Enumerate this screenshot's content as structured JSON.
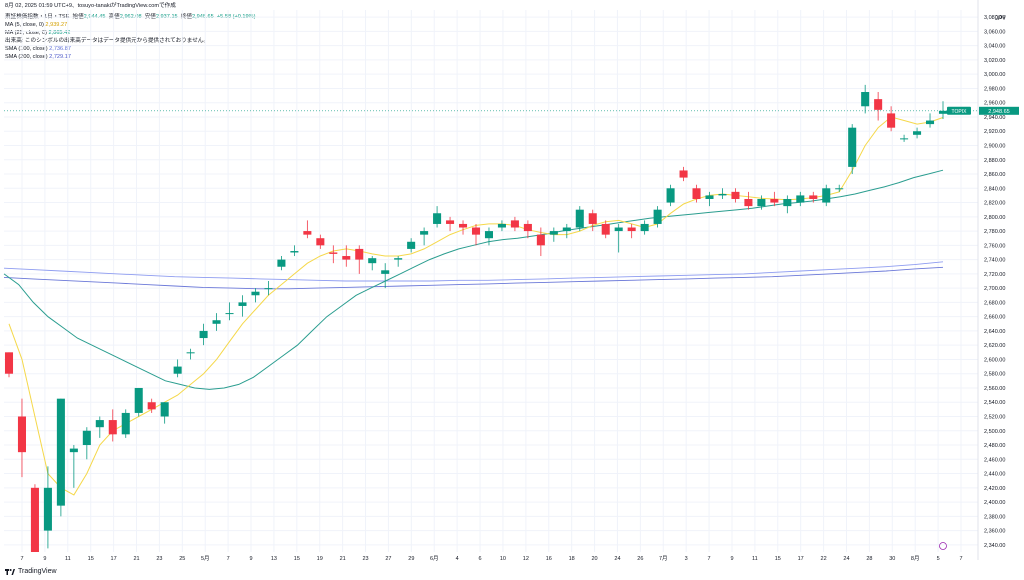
{
  "header": {
    "top_line": "8月 02, 2025 01:59 UTC+9、tosuyo-tanakiがTradingView.comで作成",
    "ohlc": {
      "prefix": "東証株価指数・1日・TSE",
      "open_label": "始値",
      "open": "2,944.45",
      "high_label": "高値",
      "high": "2,962.08",
      "low_label": "安値",
      "low": "2,937.15",
      "close_label": "終値",
      "close": "2,948.65",
      "change": "+5.58 (+0.19%)"
    },
    "indicators": [
      {
        "label": "MA (5, close, 0)",
        "value": "2,939.27",
        "color": "#d4a000"
      },
      {
        "label": "MA (25, close, 0)",
        "value": "2,865.42",
        "color": "#089981"
      },
      {
        "label": "出来高: このシンボルの出来高データはデータ提供元から提供されておりません。",
        "value": "",
        "color": "#131722"
      },
      {
        "label": "SMA (100, close)",
        "value": "2,736.87",
        "color": "#5b6bd6"
      },
      {
        "label": "SMA (200, close)",
        "value": "2,729.17",
        "color": "#4a57c8"
      }
    ]
  },
  "axis": {
    "currency": "JPY",
    "price_ticks": [
      "3,080.00",
      "3,060.00",
      "3,040.00",
      "3,020.00",
      "3,000.00",
      "2,980.00",
      "2,960.00",
      "2,940.00",
      "2,920.00",
      "2,900.00",
      "2,880.00",
      "2,860.00",
      "2,840.00",
      "2,820.00",
      "2,800.00",
      "2,780.00",
      "2,760.00",
      "2,740.00",
      "2,720.00",
      "2,700.00",
      "2,680.00",
      "2,660.00",
      "2,640.00",
      "2,620.00",
      "2,600.00",
      "2,580.00",
      "2,560.00",
      "2,540.00",
      "2,520.00",
      "2,500.00",
      "2,480.00",
      "2,460.00",
      "2,440.00",
      "2,420.00",
      "2,400.00",
      "2,380.00",
      "2,360.00",
      "2,340.00"
    ],
    "date_ticks": [
      "7",
      "9",
      "11",
      "15",
      "17",
      "21",
      "23",
      "25",
      "5月",
      "7",
      "9",
      "13",
      "15",
      "19",
      "21",
      "23",
      "27",
      "29",
      "6月",
      "4",
      "6",
      "10",
      "12",
      "16",
      "18",
      "20",
      "24",
      "26",
      "7月",
      "3",
      "7",
      "9",
      "11",
      "15",
      "17",
      "22",
      "24",
      "28",
      "30",
      "8月",
      "5",
      "7"
    ],
    "current_symbol": "TOPIX",
    "current_price": "2,948.65"
  },
  "footer": {
    "brand": "TradingView"
  },
  "colors": {
    "up": "#089981",
    "down": "#f23645",
    "ma5": "#f5d84a",
    "ma25": "#2a9d8f",
    "sma100": "#8e9cf0",
    "sma200": "#6b78d8"
  },
  "chart_data": {
    "type": "candlestick",
    "title": "東証株価指数・1日・TSE",
    "x_labels": [
      "7",
      "9",
      "11",
      "15",
      "17",
      "21",
      "23",
      "25",
      "5月",
      "7",
      "9",
      "13",
      "15",
      "19",
      "21",
      "23",
      "27",
      "29",
      "6月",
      "4",
      "6",
      "10",
      "12",
      "16",
      "18",
      "20",
      "24",
      "26",
      "7月",
      "3",
      "7",
      "9",
      "11",
      "15",
      "17",
      "22",
      "24",
      "28",
      "30",
      "8月",
      "5",
      "7"
    ],
    "ylim": [
      2330,
      3090
    ],
    "candles": [
      [
        2610,
        2610,
        2575,
        2580
      ],
      [
        2520,
        2545,
        2435,
        2470
      ],
      [
        2420,
        2425,
        2330,
        2330
      ],
      [
        2360,
        2450,
        2335,
        2420
      ],
      [
        2395,
        2545,
        2380,
        2545
      ],
      [
        2470,
        2480,
        2420,
        2475
      ],
      [
        2480,
        2505,
        2460,
        2500
      ],
      [
        2505,
        2520,
        2490,
        2515
      ],
      [
        2515,
        2530,
        2485,
        2495
      ],
      [
        2495,
        2530,
        2490,
        2525
      ],
      [
        2525,
        2560,
        2520,
        2560
      ],
      [
        2540,
        2545,
        2525,
        2530
      ],
      [
        2520,
        2540,
        2510,
        2540
      ],
      [
        2580,
        2600,
        2575,
        2590
      ],
      [
        2610,
        2615,
        2600,
        2610
      ],
      [
        2630,
        2650,
        2620,
        2640
      ],
      [
        2650,
        2665,
        2640,
        2655
      ],
      [
        2665,
        2680,
        2655,
        2665
      ],
      [
        2675,
        2690,
        2660,
        2680
      ],
      [
        2690,
        2700,
        2680,
        2695
      ],
      [
        2700,
        2710,
        2690,
        2700
      ],
      [
        2730,
        2745,
        2725,
        2740
      ],
      [
        2750,
        2760,
        2745,
        2752
      ],
      [
        2780,
        2795,
        2770,
        2775
      ],
      [
        2770,
        2775,
        2755,
        2760
      ],
      [
        2750,
        2760,
        2735,
        2748
      ],
      [
        2745,
        2760,
        2730,
        2740
      ],
      [
        2755,
        2760,
        2720,
        2740
      ],
      [
        2735,
        2745,
        2725,
        2742
      ],
      [
        2720,
        2735,
        2700,
        2725
      ],
      [
        2740,
        2745,
        2730,
        2742
      ],
      [
        2755,
        2770,
        2750,
        2765
      ],
      [
        2775,
        2785,
        2760,
        2780
      ],
      [
        2790,
        2815,
        2785,
        2805
      ],
      [
        2795,
        2800,
        2780,
        2790
      ],
      [
        2790,
        2795,
        2775,
        2785
      ],
      [
        2785,
        2790,
        2760,
        2775
      ],
      [
        2770,
        2785,
        2760,
        2780
      ],
      [
        2785,
        2795,
        2780,
        2790
      ],
      [
        2795,
        2800,
        2780,
        2785
      ],
      [
        2790,
        2795,
        2770,
        2780
      ],
      [
        2775,
        2785,
        2745,
        2760
      ],
      [
        2775,
        2785,
        2765,
        2780
      ],
      [
        2780,
        2790,
        2770,
        2785
      ],
      [
        2785,
        2815,
        2780,
        2810
      ],
      [
        2805,
        2810,
        2780,
        2790
      ],
      [
        2790,
        2795,
        2770,
        2775
      ],
      [
        2780,
        2790,
        2750,
        2785
      ],
      [
        2785,
        2790,
        2770,
        2780
      ],
      [
        2780,
        2795,
        2775,
        2790
      ],
      [
        2790,
        2815,
        2785,
        2810
      ],
      [
        2820,
        2845,
        2815,
        2840
      ],
      [
        2865,
        2870,
        2850,
        2855
      ],
      [
        2840,
        2845,
        2820,
        2825
      ],
      [
        2825,
        2835,
        2815,
        2830
      ],
      [
        2830,
        2840,
        2825,
        2832
      ],
      [
        2835,
        2840,
        2820,
        2825
      ],
      [
        2825,
        2835,
        2810,
        2815
      ],
      [
        2815,
        2830,
        2810,
        2825
      ],
      [
        2825,
        2835,
        2815,
        2820
      ],
      [
        2815,
        2830,
        2805,
        2825
      ],
      [
        2820,
        2835,
        2815,
        2830
      ],
      [
        2830,
        2835,
        2820,
        2825
      ],
      [
        2820,
        2845,
        2815,
        2840
      ],
      [
        2840,
        2845,
        2835,
        2840
      ],
      [
        2870,
        2930,
        2860,
        2925
      ],
      [
        2955,
        2985,
        2945,
        2975
      ],
      [
        2965,
        2975,
        2935,
        2950
      ],
      [
        2945,
        2955,
        2920,
        2925
      ],
      [
        2910,
        2915,
        2905,
        2910
      ],
      [
        2915,
        2925,
        2910,
        2920
      ],
      [
        2930,
        2945,
        2925,
        2935
      ],
      [
        2944.45,
        2962.08,
        2937.15,
        2948.65
      ]
    ],
    "ma5": [
      2650,
      2600,
      2520,
      2440,
      2420,
      2410,
      2440,
      2480,
      2500,
      2510,
      2520,
      2530,
      2540,
      2550,
      2565,
      2580,
      2600,
      2625,
      2650,
      2670,
      2690,
      2705,
      2720,
      2735,
      2745,
      2752,
      2755,
      2752,
      2748,
      2745,
      2745,
      2748,
      2755,
      2765,
      2775,
      2782,
      2788,
      2790,
      2790,
      2788,
      2782,
      2778,
      2775,
      2775,
      2780,
      2788,
      2793,
      2795,
      2790,
      2785,
      2790,
      2805,
      2818,
      2825,
      2830,
      2832,
      2830,
      2828,
      2826,
      2825,
      2824,
      2825,
      2827,
      2830,
      2835,
      2865,
      2900,
      2925,
      2940,
      2935,
      2930,
      2933,
      2939.27
    ],
    "ma25": [
      2720,
      2705,
      2680,
      2660,
      2645,
      2630,
      2620,
      2610,
      2600,
      2590,
      2580,
      2570,
      2565,
      2560,
      2558,
      2560,
      2565,
      2575,
      2590,
      2605,
      2620,
      2640,
      2660,
      2675,
      2690,
      2700,
      2710,
      2720,
      2730,
      2740,
      2748,
      2755,
      2760,
      2765,
      2768,
      2770,
      2773,
      2776,
      2780,
      2783,
      2786,
      2789,
      2792,
      2795,
      2798,
      2800,
      2802,
      2804,
      2806,
      2808,
      2810,
      2812,
      2815,
      2818,
      2820,
      2822,
      2825,
      2828,
      2832,
      2837,
      2842,
      2848,
      2855,
      2860,
      2865.42
    ],
    "sma100": [
      2728,
      2726,
      2724,
      2722,
      2720,
      2718,
      2716,
      2715,
      2714,
      2713,
      2712,
      2711,
      2710,
      2710,
      2710,
      2710,
      2711,
      2711,
      2712,
      2713,
      2714,
      2715,
      2716,
      2717,
      2718,
      2719,
      2720,
      2722,
      2724,
      2726,
      2728,
      2730,
      2733,
      2736.87
    ],
    "sma200": [
      2715,
      2713,
      2711,
      2709,
      2707,
      2705,
      2703,
      2701,
      2700,
      2699,
      2699,
      2700,
      2701,
      2702,
      2703,
      2704,
      2705,
      2706,
      2707,
      2708,
      2709,
      2710,
      2711,
      2712,
      2713,
      2714,
      2715,
      2716,
      2718,
      2720,
      2722,
      2724,
      2727,
      2729.17
    ]
  }
}
